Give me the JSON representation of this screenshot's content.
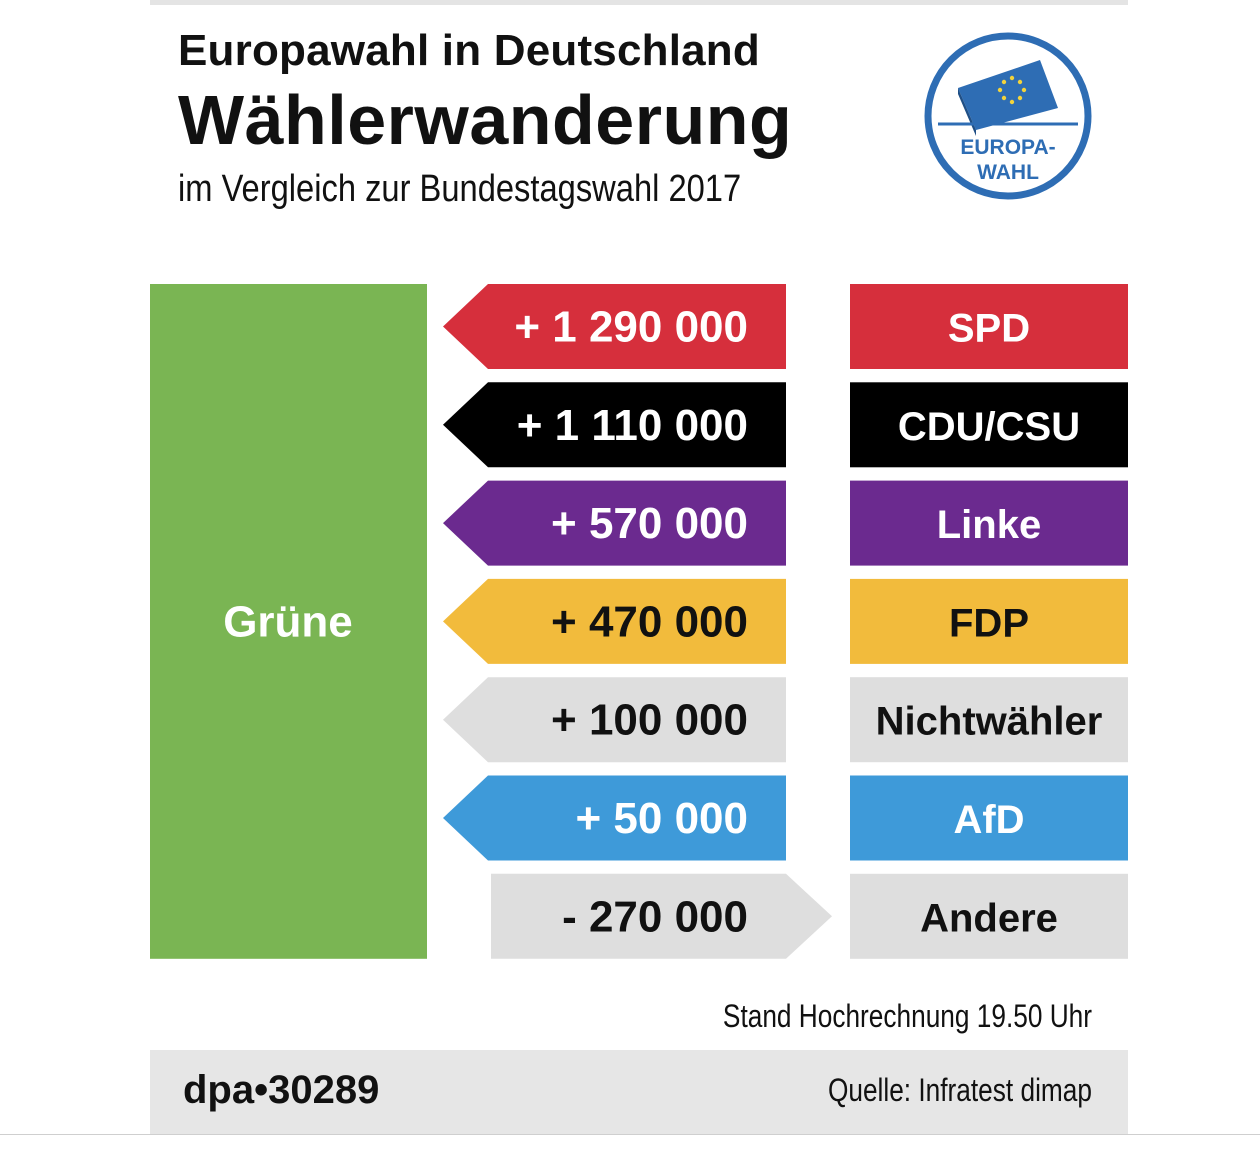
{
  "header": {
    "title": "Europawahl in Deutschland",
    "headline": "Wählerwanderung",
    "subtitle": "im Vergleich zur Bundestagswahl 2017"
  },
  "logo": {
    "text_line1": "EUROPA-",
    "text_line2": "WAHL",
    "icon": "ballot-box-eu-stars-icon",
    "color": "#2e6db4"
  },
  "chart_data": {
    "type": "bar",
    "target": {
      "label": "Grüne",
      "color": "#7ab553"
    },
    "flows": [
      {
        "party": "SPD",
        "value_label": "+ 1 290 000",
        "value": 1290000,
        "color": "#d62f3c",
        "text_color": "#ffffff"
      },
      {
        "party": "CDU/CSU",
        "value_label": "+ 1 110 000",
        "value": 1110000,
        "color": "#000000",
        "text_color": "#ffffff"
      },
      {
        "party": "Linke",
        "value_label": "+ 570 000",
        "value": 570000,
        "color": "#6b2a8f",
        "text_color": "#ffffff"
      },
      {
        "party": "FDP",
        "value_label": "+ 470 000",
        "value": 470000,
        "color": "#f2bb3c",
        "text_color": "#111111"
      },
      {
        "party": "Nichtwähler",
        "value_label": "+ 100 000",
        "value": 100000,
        "color": "#dedede",
        "text_color": "#111111"
      },
      {
        "party": "AfD",
        "value_label": "+ 50 000",
        "value": 50000,
        "color": "#3e9ad9",
        "text_color": "#ffffff"
      },
      {
        "party": "Andere",
        "value_label": "- 270 000",
        "value": -270000,
        "color": "#dedede",
        "text_color": "#111111"
      }
    ]
  },
  "note": "Stand Hochrechnung 19.50 Uhr",
  "footer": {
    "id": "dpa•30289",
    "source": "Quelle: Infratest dimap"
  }
}
